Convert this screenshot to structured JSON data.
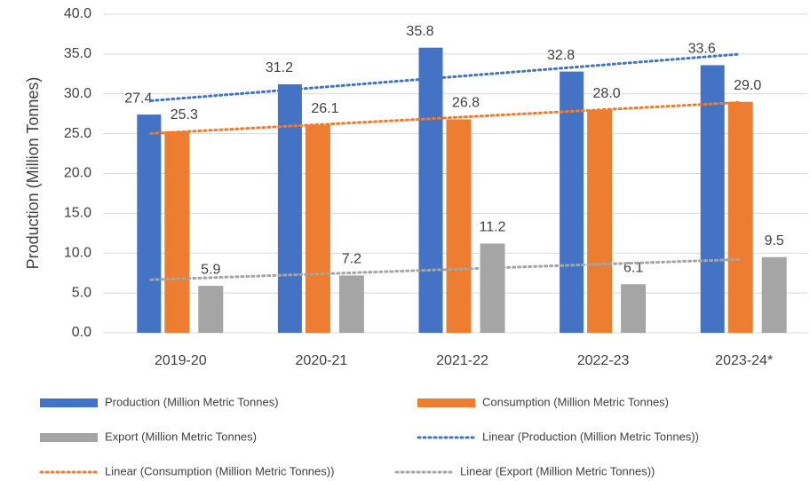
{
  "chart_data": {
    "type": "bar",
    "y_axis_label": "Production (Million Tonnes)",
    "categories": [
      "2019-20",
      "2020-21",
      "2021-22",
      "2022-23",
      "2023-24*"
    ],
    "series": [
      {
        "name": "Production (Million Metric Tonnes)",
        "color": "#4472c4",
        "values": [
          27.4,
          31.2,
          35.8,
          32.8,
          33.6
        ],
        "value_labels": [
          "27.4",
          "31.2",
          "35.8",
          "32.8",
          "33.6"
        ],
        "trendline": {
          "name": "Linear (Production (Million Metric Tonnes))",
          "color": "#4472c4"
        }
      },
      {
        "name": "Consumption (Million Metric Tonnes)",
        "color": "#ed7d31",
        "values": [
          25.3,
          26.1,
          26.8,
          28,
          29
        ],
        "value_labels": [
          "25.3",
          "26.1",
          "26.8",
          "28.0",
          "29.0"
        ],
        "trendline": {
          "name": "Linear (Consumption (Million Metric Tonnes))",
          "color": "#ed7d31"
        }
      },
      {
        "name": "Export (Million Metric Tonnes)",
        "color": "#a5a5a5",
        "values": [
          5.9,
          7.2,
          11.2,
          6.1,
          9.5
        ],
        "value_labels": [
          "5.9",
          "7.2",
          "11.2",
          "6.1",
          "9.5"
        ],
        "trendline": {
          "name": "Linear (Export (Million Metric Tonnes))",
          "color": "#a5a5a5"
        }
      }
    ],
    "ylim": [
      0,
      40
    ],
    "yticks": [
      {
        "value": 0,
        "label": "0.0"
      },
      {
        "value": 5,
        "label": "5.0"
      },
      {
        "value": 10,
        "label": "10.0"
      },
      {
        "value": 15,
        "label": "15.0"
      },
      {
        "value": 20,
        "label": "20.0"
      },
      {
        "value": 25,
        "label": "25.0"
      },
      {
        "value": 30,
        "label": "30.0"
      },
      {
        "value": 35,
        "label": "35.0"
      },
      {
        "value": 40,
        "label": "40.0"
      }
    ],
    "grid": true,
    "legend": "bottom"
  }
}
